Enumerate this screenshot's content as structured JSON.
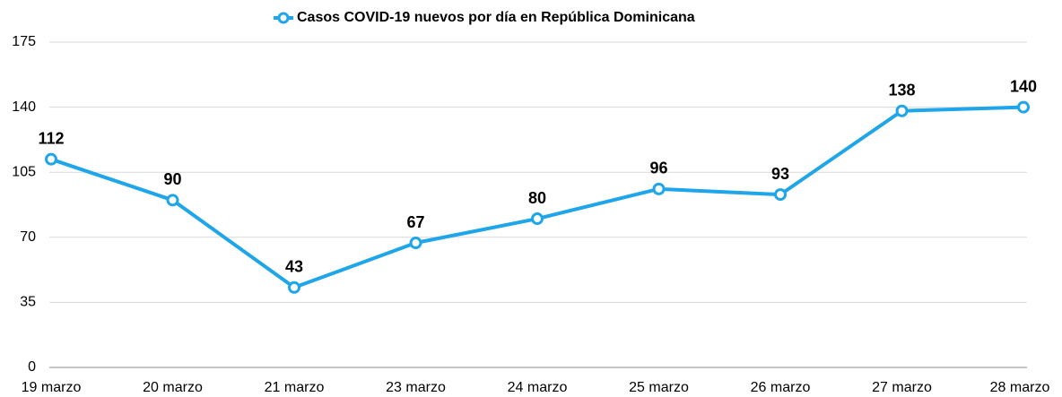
{
  "chart_data": {
    "type": "line",
    "categories": [
      "19 marzo",
      "20 marzo",
      "21 marzo",
      "23 marzo",
      "24 marzo",
      "25 marzo",
      "26 marzo",
      "27 marzo",
      "28 marzo"
    ],
    "series": [
      {
        "name": "Casos COVID-19 nuevos por día en República Dominicana",
        "color": "#1ea5ea",
        "values": [
          112,
          90,
          43,
          67,
          80,
          96,
          93,
          138,
          140
        ]
      }
    ],
    "ylim": [
      0,
      175
    ],
    "yticks": [
      0,
      35,
      70,
      105,
      140,
      175
    ],
    "grid": true,
    "legend": "top"
  }
}
